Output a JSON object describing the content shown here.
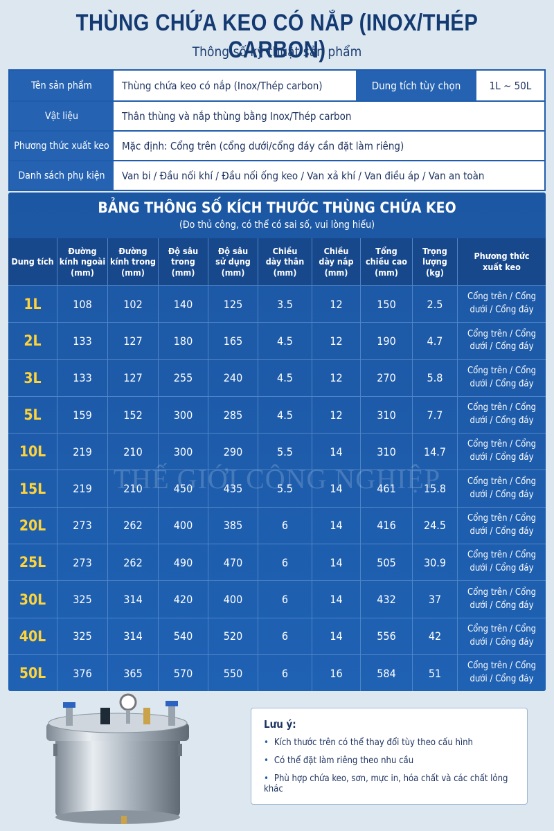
{
  "header": {
    "title": "THÙNG CHỨA KEO CÓ NẮP (INOX/THÉP CARBON)",
    "subtitle": "Thông số kỹ thuật sản phẩm"
  },
  "info": {
    "rows": [
      {
        "label": "Tên sản phẩm",
        "value": "Thùng chứa keo có nắp (Inox/Thép carbon)",
        "label2": "Dung tích tùy chọn",
        "value2": "1L ~ 50L"
      },
      {
        "label": "Vật liệu",
        "value": "Thân thùng và nắp thùng bằng Inox/Thép carbon"
      },
      {
        "label": "Phương thức xuất keo",
        "value": "Mặc định: Cổng trên (cổng dưới/cổng đáy cần đặt làm riêng)"
      },
      {
        "label": "Danh sách phụ kiện",
        "value": "Van bi / Đầu nối khí / Đầu nối ống keo / Van xả khí / Van điều áp / Van an toàn"
      }
    ]
  },
  "table": {
    "title": "BẢNG THÔNG SỐ KÍCH THƯỚC THÙNG CHỨA KEO",
    "subtitle": "(Đo thủ công, có thể có sai số, vui lòng hiểu)",
    "columns": [
      "Dung tích",
      "Đường\nkính ngoài\n(mm)",
      "Đường\nkính trong\n(mm)",
      "Độ sâu\ntrong\n(mm)",
      "Độ sâu\nsử dụng\n(mm)",
      "Chiều\ndày thân\n(mm)",
      "Chiều\ndày nắp\n(mm)",
      "Tổng\nchiều cao\n(mm)",
      "Trọng\nlượng\n(kg)",
      "Phương thức\nxuất keo"
    ],
    "rows": [
      [
        "1L",
        108,
        102,
        140,
        125,
        3.5,
        12,
        150,
        2.5,
        "Cổng trên / Cổng\ndưới / Cổng đáy"
      ],
      [
        "2L",
        133,
        127,
        180,
        165,
        4.5,
        12,
        190,
        4.7,
        "Cổng trên / Cổng\ndưới / Cổng đáy"
      ],
      [
        "3L",
        133,
        127,
        255,
        240,
        4.5,
        12,
        270,
        5.8,
        "Cổng trên / Cổng\ndưới / Cổng đáy"
      ],
      [
        "5L",
        159,
        152,
        300,
        285,
        4.5,
        12,
        310,
        7.7,
        "Cổng trên / Cổng\ndưới / Cổng đáy"
      ],
      [
        "10L",
        219,
        210,
        300,
        290,
        5.5,
        14,
        310,
        14.7,
        "Cổng trên / Cổng\ndưới / Cổng đáy"
      ],
      [
        "15L",
        219,
        210,
        450,
        435,
        5.5,
        14,
        461,
        15.8,
        "Cổng trên / Cổng\ndưới / Cổng đáy"
      ],
      [
        "20L",
        273,
        262,
        400,
        385,
        6,
        14,
        416,
        24.5,
        "Cổng trên / Cổng\ndưới / Cổng đáy"
      ],
      [
        "25L",
        273,
        262,
        490,
        470,
        6,
        14,
        505,
        30.9,
        "Cổng trên / Cổng\ndưới / Cổng đáy"
      ],
      [
        "30L",
        325,
        314,
        420,
        400,
        6,
        14,
        432,
        37,
        "Cổng trên / Cổng\ndưới / Cổng đáy"
      ],
      [
        "40L",
        325,
        314,
        540,
        520,
        6,
        14,
        556,
        42,
        "Cổng trên / Cổng\ndưới / Cổng đáy"
      ],
      [
        "50L",
        376,
        365,
        570,
        550,
        6,
        16,
        584,
        51,
        "Cổng trên / Cổng\ndưới / Cổng đáy"
      ]
    ]
  },
  "watermark": "THẾ GIỚI CÔNG NGHIỆP",
  "note": {
    "title": "Lưu ý:",
    "items": [
      "Kích thước trên có thể thay đổi tùy theo cấu hình",
      "Có thể đặt làm riêng theo nhu cầu",
      "Phù hợp chứa keo, sơn, mực in, hóa chất và các chất lỏng khác"
    ]
  }
}
